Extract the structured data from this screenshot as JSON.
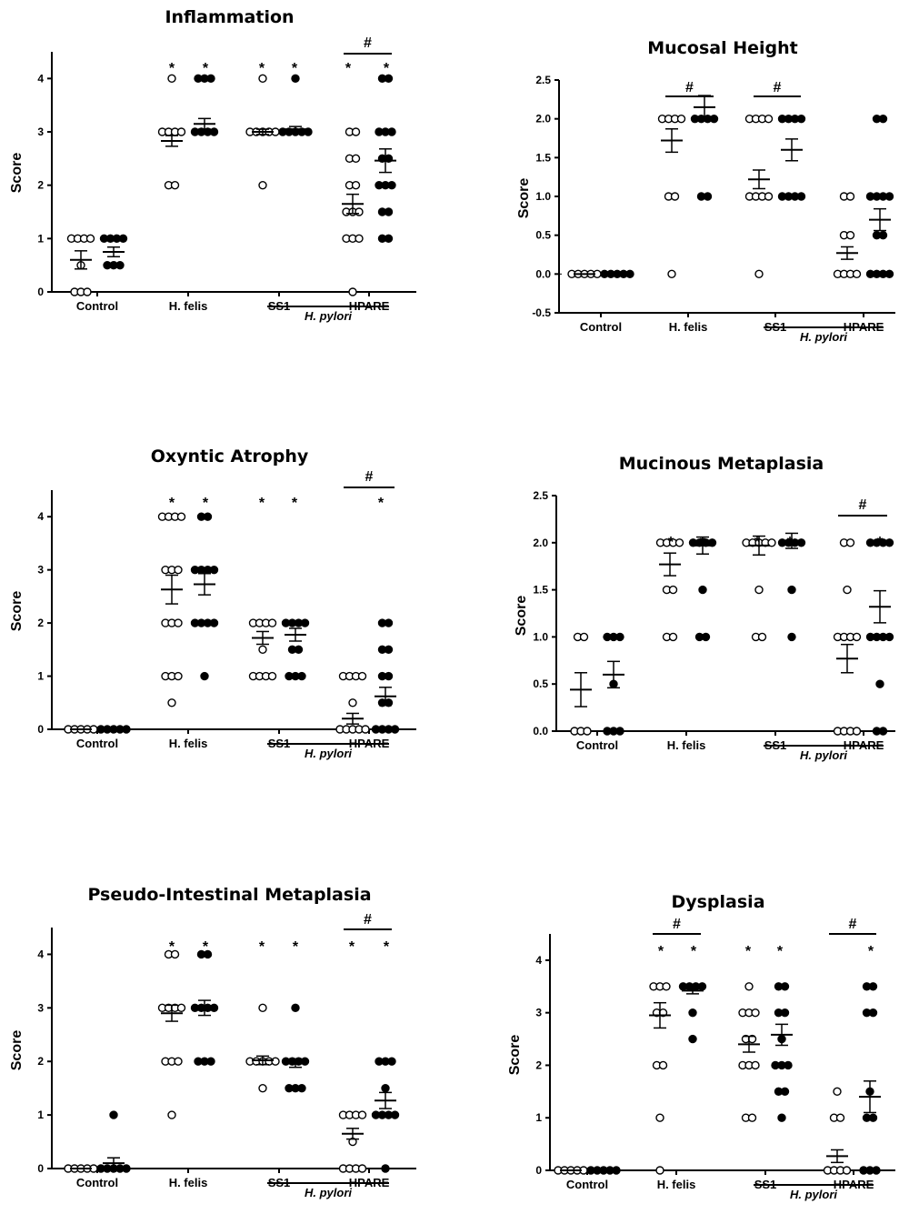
{
  "chart_data": [
    {
      "type": "scatter",
      "title": "Inflammation",
      "ylabel": "Score",
      "ylim": [
        0,
        4.5
      ],
      "yticks": [
        "0",
        "1",
        "2",
        "3",
        "4"
      ],
      "categories": [
        "Control",
        "H. felis",
        "SS1",
        "HPARE"
      ],
      "group_label": "H. pylori",
      "series": [
        {
          "name": "",
          "style": "open",
          "values": [
            [
              1,
              1,
              1,
              1,
              0.5,
              0,
              0,
              0
            ],
            [
              4,
              3,
              3,
              3,
              3,
              2,
              2
            ],
            [
              4,
              3,
              3,
              3,
              3,
              3,
              2
            ],
            [
              3,
              3,
              2.5,
              2.5,
              2,
              2,
              1.5,
              1.5,
              1.5,
              1,
              1,
              1,
              0
            ]
          ],
          "means": [
            0.6,
            2.83,
            3.0,
            1.65
          ],
          "sem": [
            0.17,
            0.1,
            0.05,
            0.18
          ]
        },
        {
          "name": "",
          "style": "filled",
          "values": [
            [
              1,
              1,
              1,
              1,
              0.5,
              0.5,
              0.5
            ],
            [
              4,
              4,
              4,
              3,
              3,
              3,
              3
            ],
            [
              4,
              3,
              3,
              3,
              3,
              3
            ],
            [
              4,
              4,
              3,
              3,
              3,
              2.5,
              2.5,
              2,
              2,
              2,
              1.5,
              1.5,
              1,
              1
            ]
          ],
          "means": [
            0.75,
            3.15,
            3.05,
            2.46
          ],
          "sem": [
            0.09,
            0.1,
            0.05,
            0.22
          ]
        }
      ],
      "annotations": [
        "*",
        "*",
        "*",
        "*",
        "*",
        "*",
        "#"
      ]
    },
    {
      "type": "scatter",
      "title": "Mucosal Height",
      "ylabel": "Score",
      "ylim": [
        -0.5,
        2.5
      ],
      "yticks": [
        "-0.5",
        "0.0",
        "0.5",
        "1.0",
        "1.5",
        "2.0",
        "2.5"
      ],
      "categories": [
        "Control",
        "H. felis",
        "SS1",
        "HPARE"
      ],
      "group_label": "H. pylori",
      "series": [
        {
          "name": "",
          "style": "open",
          "values": [
            [
              0,
              0,
              0,
              0,
              0
            ],
            [
              2,
              2,
              2,
              2,
              1,
              1,
              0
            ],
            [
              2,
              2,
              2,
              2,
              1,
              1,
              1,
              1,
              0
            ],
            [
              1,
              1,
              0.5,
              0.5,
              0,
              0,
              0,
              0
            ]
          ],
          "means": [
            0.0,
            1.72,
            1.22,
            0.27
          ],
          "sem": [
            0.0,
            0.15,
            0.12,
            0.08
          ]
        },
        {
          "name": "",
          "style": "filled",
          "values": [
            [
              0,
              0,
              0,
              0,
              0
            ],
            [
              2,
              2,
              2,
              2,
              1,
              1
            ],
            [
              2,
              2,
              2,
              2,
              1,
              1,
              1,
              1
            ],
            [
              2,
              2,
              1,
              1,
              1,
              1,
              0.5,
              0.5,
              0,
              0,
              0,
              0
            ]
          ],
          "means": [
            0.0,
            2.15,
            1.6,
            0.7
          ],
          "sem": [
            0.0,
            0.15,
            0.14,
            0.14
          ]
        }
      ],
      "annotations": [
        "#",
        "#"
      ]
    },
    {
      "type": "scatter",
      "title": "Oxyntic Atrophy",
      "ylabel": "Score",
      "ylim": [
        0,
        4.5
      ],
      "yticks": [
        "0",
        "1",
        "2",
        "3",
        "4"
      ],
      "categories": [
        "Control",
        "H. felis",
        "SS1",
        "HPARE"
      ],
      "group_label": "H. pylori",
      "series": [
        {
          "name": "",
          "style": "open",
          "values": [
            [
              0,
              0,
              0,
              0,
              0
            ],
            [
              4,
              4,
              4,
              4,
              3,
              3,
              3,
              2,
              2,
              2,
              1,
              1,
              1,
              0.5
            ],
            [
              2,
              2,
              2,
              2,
              1.5,
              1,
              1,
              1,
              1
            ],
            [
              1,
              1,
              1,
              1,
              0.5,
              0,
              0,
              0,
              0,
              0
            ]
          ],
          "means": [
            0.0,
            2.63,
            1.72,
            0.2
          ],
          "sem": [
            0.0,
            0.27,
            0.12,
            0.1
          ]
        },
        {
          "name": "",
          "style": "filled",
          "values": [
            [
              0,
              0,
              0,
              0,
              0
            ],
            [
              4,
              4,
              3,
              3,
              3,
              3,
              2,
              2,
              2,
              2,
              1
            ],
            [
              2,
              2,
              2,
              2,
              1.5,
              1.5,
              1,
              1,
              1
            ],
            [
              2,
              2,
              1.5,
              1.5,
              1,
              1,
              0.5,
              0.5,
              0,
              0,
              0,
              0
            ]
          ],
          "means": [
            0.0,
            2.73,
            1.78,
            0.62
          ],
          "sem": [
            0.0,
            0.2,
            0.12,
            0.17
          ]
        }
      ],
      "annotations": [
        "*",
        "*",
        "*",
        "*",
        "*",
        "#"
      ]
    },
    {
      "type": "scatter",
      "title": "Mucinous Metaplasia",
      "ylabel": "Score",
      "ylim": [
        0,
        2.5
      ],
      "yticks": [
        "0.0",
        "0.5",
        "1.0",
        "1.5",
        "2.0",
        "2.5"
      ],
      "categories": [
        "Control",
        "H. felis",
        "SS1",
        "HPARE"
      ],
      "group_label": "H. pylori",
      "series": [
        {
          "name": "",
          "style": "open",
          "values": [
            [
              1,
              1,
              0,
              0,
              0
            ],
            [
              2,
              2,
              2,
              2,
              1.5,
              1.5,
              1,
              1
            ],
            [
              2,
              2,
              2,
              2,
              2,
              1.5,
              1,
              1
            ],
            [
              2,
              2,
              1.5,
              1,
              1,
              1,
              1,
              0,
              0,
              0,
              0
            ]
          ],
          "means": [
            0.44,
            1.77,
            1.97,
            0.77
          ],
          "sem": [
            0.18,
            0.12,
            0.1,
            0.15
          ]
        },
        {
          "name": "",
          "style": "filled",
          "values": [
            [
              1,
              1,
              1,
              0.5,
              0,
              0,
              0
            ],
            [
              2,
              2,
              2,
              2,
              1.5,
              1,
              1
            ],
            [
              2,
              2,
              2,
              2,
              1.5,
              1
            ],
            [
              2,
              2,
              2,
              2,
              1,
              1,
              1,
              1,
              0.5,
              0,
              0
            ]
          ],
          "means": [
            0.6,
            1.97,
            2.02,
            1.32
          ],
          "sem": [
            0.14,
            0.09,
            0.08,
            0.17
          ]
        }
      ],
      "annotations": [
        "*",
        "*",
        "*",
        "*",
        "*",
        "#"
      ]
    },
    {
      "type": "scatter",
      "title": "Pseudo-Intestinal Metaplasia",
      "ylabel": "Score",
      "ylim": [
        0,
        4.5
      ],
      "yticks": [
        "0",
        "1",
        "2",
        "3",
        "4"
      ],
      "categories": [
        "Control",
        "H. felis",
        "SS1",
        "HPARE"
      ],
      "group_label": "H. pylori",
      "series": [
        {
          "name": "",
          "style": "open",
          "values": [
            [
              0,
              0,
              0,
              0,
              0
            ],
            [
              4,
              4,
              3,
              3,
              3,
              3,
              2,
              2,
              2,
              1
            ],
            [
              3,
              2,
              2,
              2,
              2,
              2,
              1.5
            ],
            [
              1,
              1,
              1,
              1,
              0.5,
              0,
              0,
              0,
              0
            ]
          ],
          "means": [
            0.0,
            2.9,
            2.02,
            0.65
          ],
          "sem": [
            0.0,
            0.15,
            0.08,
            0.1
          ]
        },
        {
          "name": "",
          "style": "filled",
          "values": [
            [
              1,
              0,
              0,
              0,
              0,
              0
            ],
            [
              4,
              4,
              3,
              3,
              3,
              3,
              2,
              2,
              2
            ],
            [
              3,
              2,
              2,
              2,
              2,
              1.5,
              1.5,
              1.5
            ],
            [
              2,
              2,
              2,
              1.5,
              1,
              1,
              1,
              1,
              0
            ]
          ],
          "means": [
            0.1,
            3.0,
            1.97,
            1.27
          ],
          "sem": [
            0.1,
            0.14,
            0.08,
            0.15
          ]
        }
      ],
      "annotations": [
        "*",
        "*",
        "*",
        "*",
        "*",
        "*",
        "#"
      ]
    },
    {
      "type": "scatter",
      "title": "Dysplasia",
      "ylabel": "Score",
      "ylim": [
        0,
        4.5
      ],
      "yticks": [
        "0",
        "1",
        "2",
        "3",
        "4"
      ],
      "categories": [
        "Control",
        "H. felis",
        "SS1",
        "HPARE"
      ],
      "group_label": "H. pylori",
      "series": [
        {
          "name": "",
          "style": "open",
          "values": [
            [
              0,
              0,
              0,
              0,
              0
            ],
            [
              3.5,
              3.5,
              3.5,
              3,
              3,
              2,
              2,
              1,
              0
            ],
            [
              3.5,
              3,
              3,
              3,
              2.5,
              2.5,
              2,
              2,
              2,
              1,
              1
            ],
            [
              1.5,
              1,
              1,
              0,
              0,
              0,
              0
            ]
          ],
          "means": [
            0.0,
            2.95,
            2.4,
            0.27
          ],
          "sem": [
            0.0,
            0.24,
            0.15,
            0.12
          ]
        },
        {
          "name": "",
          "style": "filled",
          "values": [
            [
              0,
              0,
              0,
              0,
              0
            ],
            [
              3.5,
              3.5,
              3.5,
              3.5,
              3,
              2.5
            ],
            [
              3.5,
              3.5,
              3,
              3,
              2.5,
              2,
              2,
              2,
              1.5,
              1.5,
              1
            ],
            [
              3.5,
              3.5,
              3,
              3,
              1.5,
              1,
              1,
              0,
              0,
              0
            ]
          ],
          "means": [
            0.0,
            3.42,
            2.58,
            1.4
          ],
          "sem": [
            0.0,
            0.06,
            0.2,
            0.3
          ]
        }
      ],
      "annotations": [
        "#",
        "*",
        "*",
        "*",
        "*",
        "*",
        "#"
      ]
    }
  ]
}
